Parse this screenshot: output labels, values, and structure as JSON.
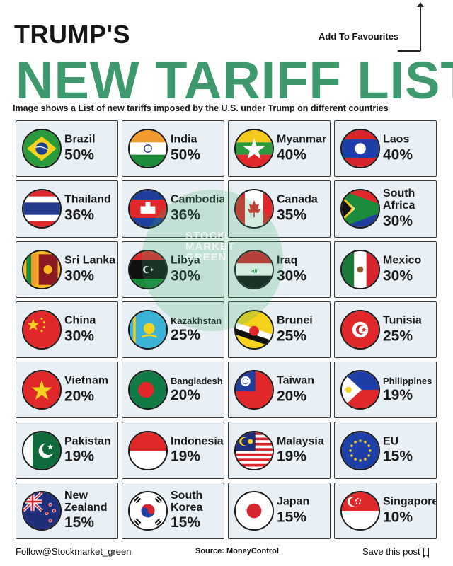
{
  "header": {
    "title_top": "TRUMP'S",
    "title_main": "NEW TARIFF LIST",
    "subtitle": "Image shows a List of new tariffs imposed by the U.S. under Trump on different countries",
    "favourites_link": "Add To Favourites"
  },
  "watermark": {
    "text": "STOCK MARKET GREEN"
  },
  "tariffs": [
    {
      "country": "Brazil",
      "rate": "50%",
      "flag": "brazil-flag-icon"
    },
    {
      "country": "India",
      "rate": "50%",
      "flag": "india-flag-icon"
    },
    {
      "country": "Myanmar",
      "rate": "40%",
      "flag": "myanmar-flag-icon"
    },
    {
      "country": "Laos",
      "rate": "40%",
      "flag": "laos-flag-icon"
    },
    {
      "country": "Thailand",
      "rate": "36%",
      "flag": "thailand-flag-icon"
    },
    {
      "country": "Cambodia",
      "rate": "36%",
      "flag": "cambodia-flag-icon"
    },
    {
      "country": "Canada",
      "rate": "35%",
      "flag": "canada-flag-icon"
    },
    {
      "country": "South Africa",
      "rate": "30%",
      "flag": "south-africa-flag-icon"
    },
    {
      "country": "Sri Lanka",
      "rate": "30%",
      "flag": "sri-lanka-flag-icon"
    },
    {
      "country": "Libya",
      "rate": "30%",
      "flag": "libya-flag-icon"
    },
    {
      "country": "Iraq",
      "rate": "30%",
      "flag": "iraq-flag-icon"
    },
    {
      "country": "Mexico",
      "rate": "30%",
      "flag": "mexico-flag-icon"
    },
    {
      "country": "China",
      "rate": "30%",
      "flag": "china-flag-icon"
    },
    {
      "country": "Kazakhstan",
      "rate": "25%",
      "flag": "kazakhstan-flag-icon"
    },
    {
      "country": "Brunei",
      "rate": "25%",
      "flag": "brunei-flag-icon"
    },
    {
      "country": "Tunisia",
      "rate": "25%",
      "flag": "tunisia-flag-icon"
    },
    {
      "country": "Vietnam",
      "rate": "20%",
      "flag": "vietnam-flag-icon"
    },
    {
      "country": "Bangladesh",
      "rate": "20%",
      "flag": "bangladesh-flag-icon"
    },
    {
      "country": "Taiwan",
      "rate": "20%",
      "flag": "taiwan-flag-icon"
    },
    {
      "country": "Philippines",
      "rate": "19%",
      "flag": "philippines-flag-icon"
    },
    {
      "country": "Pakistan",
      "rate": "19%",
      "flag": "pakistan-flag-icon"
    },
    {
      "country": "Indonesia",
      "rate": "19%",
      "flag": "indonesia-flag-icon"
    },
    {
      "country": "Malaysia",
      "rate": "19%",
      "flag": "malaysia-flag-icon"
    },
    {
      "country": "EU",
      "rate": "15%",
      "flag": "eu-flag-icon"
    },
    {
      "country": "New Zealand",
      "rate": "15%",
      "flag": "new-zealand-flag-icon"
    },
    {
      "country": "South Korea",
      "rate": "15%",
      "flag": "south-korea-flag-icon"
    },
    {
      "country": "Japan",
      "rate": "15%",
      "flag": "japan-flag-icon"
    },
    {
      "country": "Singapore",
      "rate": "10%",
      "flag": "singapore-flag-icon"
    }
  ],
  "footer": {
    "follow": "Follow@Stockmarket_green",
    "source": "Source: MoneyControl",
    "save": "Save this post"
  },
  "colors": {
    "title_green": "#3e9a6c",
    "card_bg": "#e9f0f5",
    "card_border": "#3a3a3a"
  }
}
